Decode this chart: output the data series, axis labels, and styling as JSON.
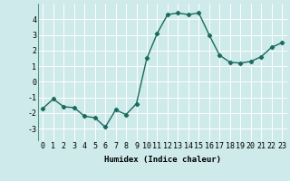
{
  "x": [
    0,
    1,
    2,
    3,
    4,
    5,
    6,
    7,
    8,
    9,
    10,
    11,
    12,
    13,
    14,
    15,
    16,
    17,
    18,
    19,
    20,
    21,
    22,
    23
  ],
  "y": [
    -1.7,
    -1.1,
    -1.6,
    -1.65,
    -2.2,
    -2.3,
    -2.9,
    -1.8,
    -2.1,
    -1.4,
    1.5,
    3.1,
    4.3,
    4.4,
    4.3,
    4.4,
    3.0,
    1.7,
    1.25,
    1.2,
    1.3,
    1.6,
    2.2,
    2.5
  ],
  "line_color": "#1a6b5e",
  "marker": "D",
  "markersize": 2.2,
  "linewidth": 1.0,
  "xlabel": "Humidex (Indice chaleur)",
  "xlim": [
    -0.5,
    23.5
  ],
  "ylim": [
    -3.8,
    5.0
  ],
  "yticks": [
    -3,
    -2,
    -1,
    0,
    1,
    2,
    3,
    4
  ],
  "xticks": [
    0,
    1,
    2,
    3,
    4,
    5,
    6,
    7,
    8,
    9,
    10,
    11,
    12,
    13,
    14,
    15,
    16,
    17,
    18,
    19,
    20,
    21,
    22,
    23
  ],
  "background_color": "#ceeaea",
  "grid_color": "#b8d8d8",
  "xlabel_fontsize": 6.5,
  "tick_fontsize": 6.0
}
